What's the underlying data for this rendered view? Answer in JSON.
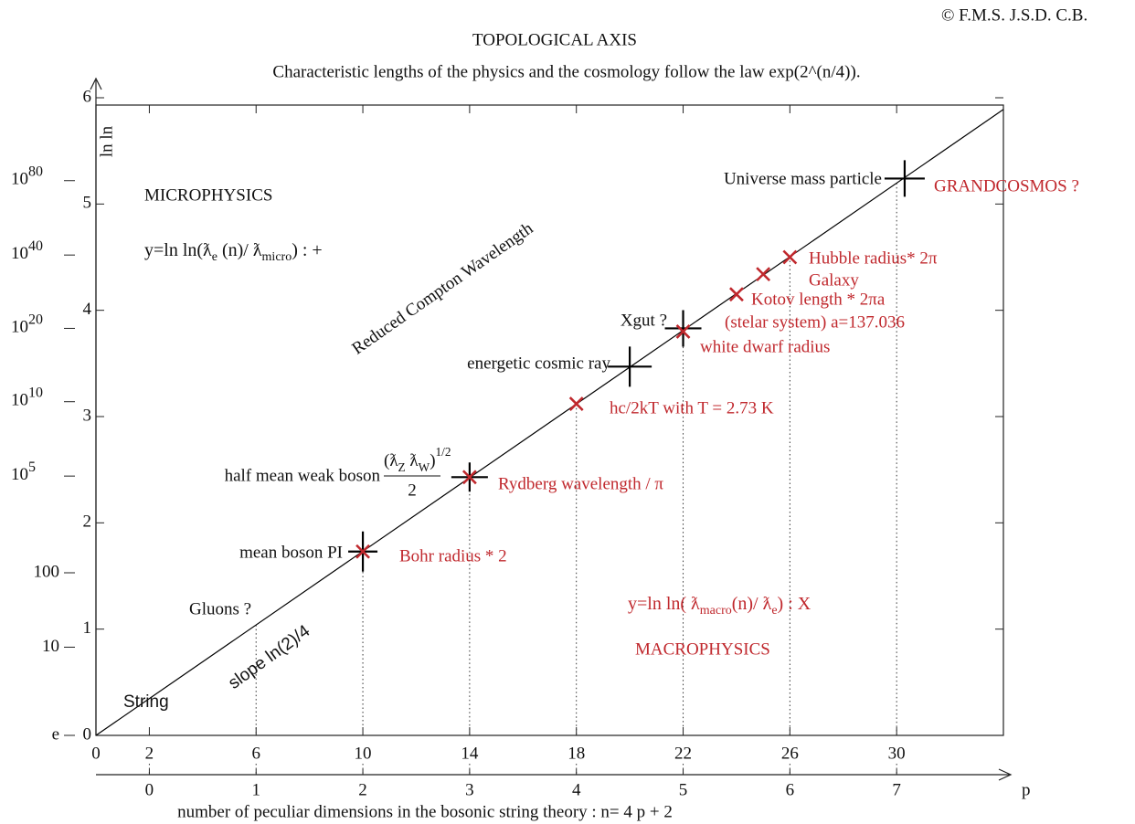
{
  "chart_data": {
    "type": "line",
    "credit": "© F.M.S. J.S.D. C.B.",
    "title": "TOPOLOGICAL AXIS",
    "subtitle": "Characteristic lengths of the physics and the cosmology follow the law  exp(2^(n/4)).",
    "y_label": "ln ln",
    "x_label": "number of peculiar dimensions in the bosonic string theory  : n= 4 p +  2",
    "p_label": "p",
    "xlim": [
      0,
      34
    ],
    "ylim": [
      0,
      6
    ],
    "xticks": [
      0,
      2,
      6,
      10,
      14,
      18,
      22,
      26,
      30
    ],
    "yticks": [
      0,
      1,
      2,
      3,
      4,
      5,
      6
    ],
    "y2ticks": [
      {
        "value": 5.22,
        "base": "10",
        "exponent": "80"
      },
      {
        "value": 4.52,
        "base": "10",
        "exponent": "40"
      },
      {
        "value": 3.83,
        "base": "10",
        "exponent": "20"
      },
      {
        "value": 3.14,
        "base": "10",
        "exponent": "10"
      },
      {
        "value": 2.44,
        "base": "10",
        "exponent": "5"
      },
      {
        "value": 1.53,
        "label": "100"
      },
      {
        "value": 0.83,
        "label": "10"
      },
      {
        "value": 0,
        "label": "e"
      }
    ],
    "pticks": [
      {
        "value": 2,
        "label": "0"
      },
      {
        "value": 6,
        "label": "1"
      },
      {
        "value": 10,
        "label": "2"
      },
      {
        "value": 14,
        "label": "3"
      },
      {
        "value": 18,
        "label": "4"
      },
      {
        "value": 22,
        "label": "5"
      },
      {
        "value": 26,
        "label": "6"
      },
      {
        "value": 30,
        "label": "7"
      }
    ],
    "line": {
      "x": [
        0,
        34
      ],
      "y": [
        0,
        5.89
      ],
      "color": "#000000"
    },
    "plus_points": {
      "x": [
        10,
        14,
        20,
        22,
        30.3
      ],
      "y": [
        1.73,
        2.43,
        3.47,
        3.83,
        5.24
      ],
      "color": "#000000"
    },
    "cross_points": {
      "x": [
        10,
        14,
        18,
        22,
        24,
        25,
        26
      ],
      "y": [
        1.73,
        2.43,
        3.12,
        3.8,
        4.15,
        4.34,
        4.5
      ],
      "color": "#c0282d"
    },
    "labels": [
      "Universe mass particle",
      "Xgut ?",
      "energetic cosmic ray",
      "half mean weak boson",
      "mean boson PI",
      "GRANDCOSMOS ?",
      "Hubble radius* 2π",
      "Galaxy",
      "Kotov length * 2πa",
      "(stelar system)    a=137.036",
      "white dwarf radius",
      "hc/2kT  with T = 2.73 K",
      "Rydberg wavelength / π",
      "Bohr  radius * 2",
      "Gluons ?",
      "String",
      "slope ln(2)/4",
      "Reduced Compton Wavelength",
      "MICROPHYSICS",
      "MACROPHYSICS"
    ],
    "weak_fraction": {
      "numerator": [
        "(ƛ",
        "Z",
        "  ƛ",
        "W",
        ")",
        "1/2"
      ],
      "denominator": "2"
    },
    "micro_formula": [
      "y=ln ln(ƛ",
      "e",
      " (n)/ ƛ",
      "micro",
      ") : +"
    ],
    "macro_formula": [
      "y=ln ln( ƛ",
      "macro",
      "(n)/ ƛ",
      "e",
      ") : X"
    ]
  }
}
